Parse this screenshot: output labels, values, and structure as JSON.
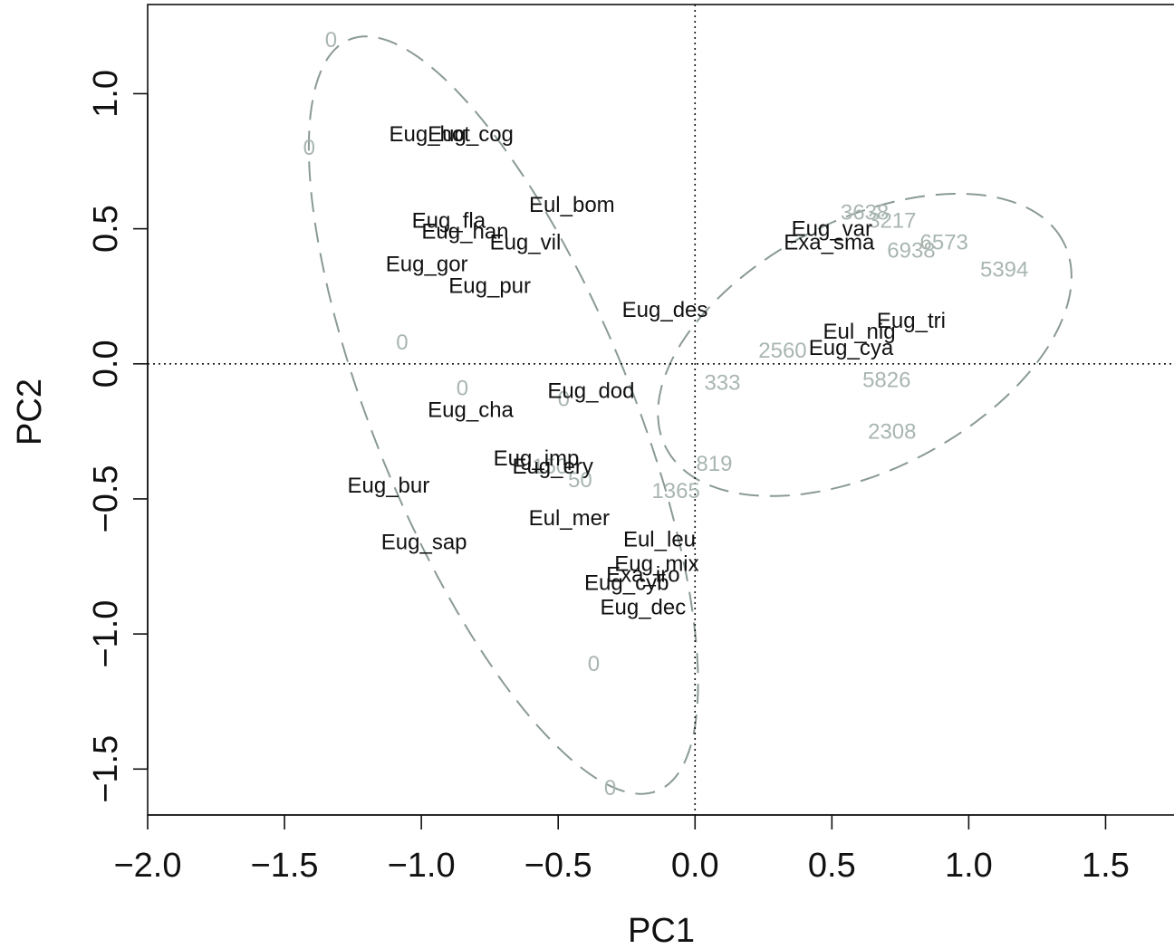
{
  "chart_data": {
    "type": "scatter",
    "title": "",
    "xlabel": "PC1",
    "ylabel": "PC2",
    "xlim": [
      -2.0,
      1.75
    ],
    "ylim": [
      -1.67,
      1.33
    ],
    "xticks": [
      -2.0,
      -1.5,
      -1.0,
      -0.5,
      0.0,
      0.5,
      1.0,
      1.5
    ],
    "yticks": [
      -1.5,
      -1.0,
      -0.5,
      0.0,
      0.5,
      1.0
    ],
    "xtick_labels": [
      "−2.0",
      "−1.5",
      "−1.0",
      "−0.5",
      "0.0",
      "0.5",
      "1.0",
      "1.5"
    ],
    "ytick_labels": [
      "−1.5",
      "−1.0",
      "−0.5",
      "0.0",
      "0.5",
      "1.0"
    ],
    "reference_lines": {
      "x": 0,
      "y": 0,
      "style": "dotted"
    },
    "colors": {
      "species_text": "#111111",
      "value_text": "#a9b6b0",
      "ellipse": "#8a9a94",
      "axis": "#111111"
    },
    "species_labels": [
      {
        "text": "Eug_hot",
        "x": -0.97,
        "y": 0.85
      },
      {
        "text": "Eug_cog",
        "x": -0.82,
        "y": 0.85
      },
      {
        "text": "Eul_bom",
        "x": -0.45,
        "y": 0.59
      },
      {
        "text": "Eug_fla",
        "x": -0.9,
        "y": 0.53
      },
      {
        "text": "Eug_han",
        "x": -0.84,
        "y": 0.49
      },
      {
        "text": "Eug_vil",
        "x": -0.62,
        "y": 0.45
      },
      {
        "text": "Eug_gor",
        "x": -0.98,
        "y": 0.37
      },
      {
        "text": "Eug_pur",
        "x": -0.75,
        "y": 0.29
      },
      {
        "text": "Eug_des",
        "x": -0.11,
        "y": 0.2
      },
      {
        "text": "Eug_var",
        "x": 0.5,
        "y": 0.5
      },
      {
        "text": "Exa_sma",
        "x": 0.49,
        "y": 0.45
      },
      {
        "text": "Eug_tri",
        "x": 0.79,
        "y": 0.16
      },
      {
        "text": "Eul_nig",
        "x": 0.6,
        "y": 0.12
      },
      {
        "text": "Eug_cya",
        "x": 0.57,
        "y": 0.06
      },
      {
        "text": "Eug_dod",
        "x": -0.38,
        "y": -0.1
      },
      {
        "text": "Eug_cha",
        "x": -0.82,
        "y": -0.17
      },
      {
        "text": "Eug_imp",
        "x": -0.58,
        "y": -0.35
      },
      {
        "text": "Eug_ery",
        "x": -0.52,
        "y": -0.38
      },
      {
        "text": "Eug_bur",
        "x": -1.12,
        "y": -0.45
      },
      {
        "text": "Eul_mer",
        "x": -0.46,
        "y": -0.57
      },
      {
        "text": "Eug_sap",
        "x": -0.99,
        "y": -0.66
      },
      {
        "text": "Eul_leu",
        "x": -0.13,
        "y": -0.65
      },
      {
        "text": "Eug_mix",
        "x": -0.14,
        "y": -0.74
      },
      {
        "text": "Exa_iro",
        "x": -0.19,
        "y": -0.78
      },
      {
        "text": "Eug_cyb",
        "x": -0.25,
        "y": -0.81
      },
      {
        "text": "Eug_dec",
        "x": -0.19,
        "y": -0.9
      }
    ],
    "value_labels": [
      {
        "text": "0",
        "x": -1.33,
        "y": 1.2
      },
      {
        "text": "0",
        "x": -1.41,
        "y": 0.8
      },
      {
        "text": "0",
        "x": -1.07,
        "y": 0.08
      },
      {
        "text": "0",
        "x": -0.85,
        "y": -0.09
      },
      {
        "text": "0",
        "x": -0.48,
        "y": -0.13
      },
      {
        "text": "150",
        "x": -0.53,
        "y": -0.38
      },
      {
        "text": "50",
        "x": -0.42,
        "y": -0.43
      },
      {
        "text": "0",
        "x": -0.37,
        "y": -1.11
      },
      {
        "text": "0",
        "x": -0.31,
        "y": -1.57
      },
      {
        "text": "333",
        "x": 0.1,
        "y": -0.07
      },
      {
        "text": "819",
        "x": 0.07,
        "y": -0.37
      },
      {
        "text": "1365",
        "x": -0.07,
        "y": -0.47
      },
      {
        "text": "2560",
        "x": 0.32,
        "y": 0.05
      },
      {
        "text": "3638",
        "x": 0.62,
        "y": 0.56
      },
      {
        "text": "3217",
        "x": 0.72,
        "y": 0.53
      },
      {
        "text": "6938",
        "x": 0.79,
        "y": 0.42
      },
      {
        "text": "6573",
        "x": 0.91,
        "y": 0.45
      },
      {
        "text": "5394",
        "x": 1.13,
        "y": 0.35
      },
      {
        "text": "5826",
        "x": 0.7,
        "y": -0.06
      },
      {
        "text": "2308",
        "x": 0.72,
        "y": -0.25
      }
    ],
    "ellipses": [
      {
        "cx": -0.7,
        "cy": -0.19,
        "rx": 0.47,
        "ry": 1.5,
        "angle_deg": 22
      },
      {
        "cx": 0.62,
        "cy": 0.07,
        "rx": 0.82,
        "ry": 0.46,
        "angle_deg": 28
      }
    ]
  }
}
